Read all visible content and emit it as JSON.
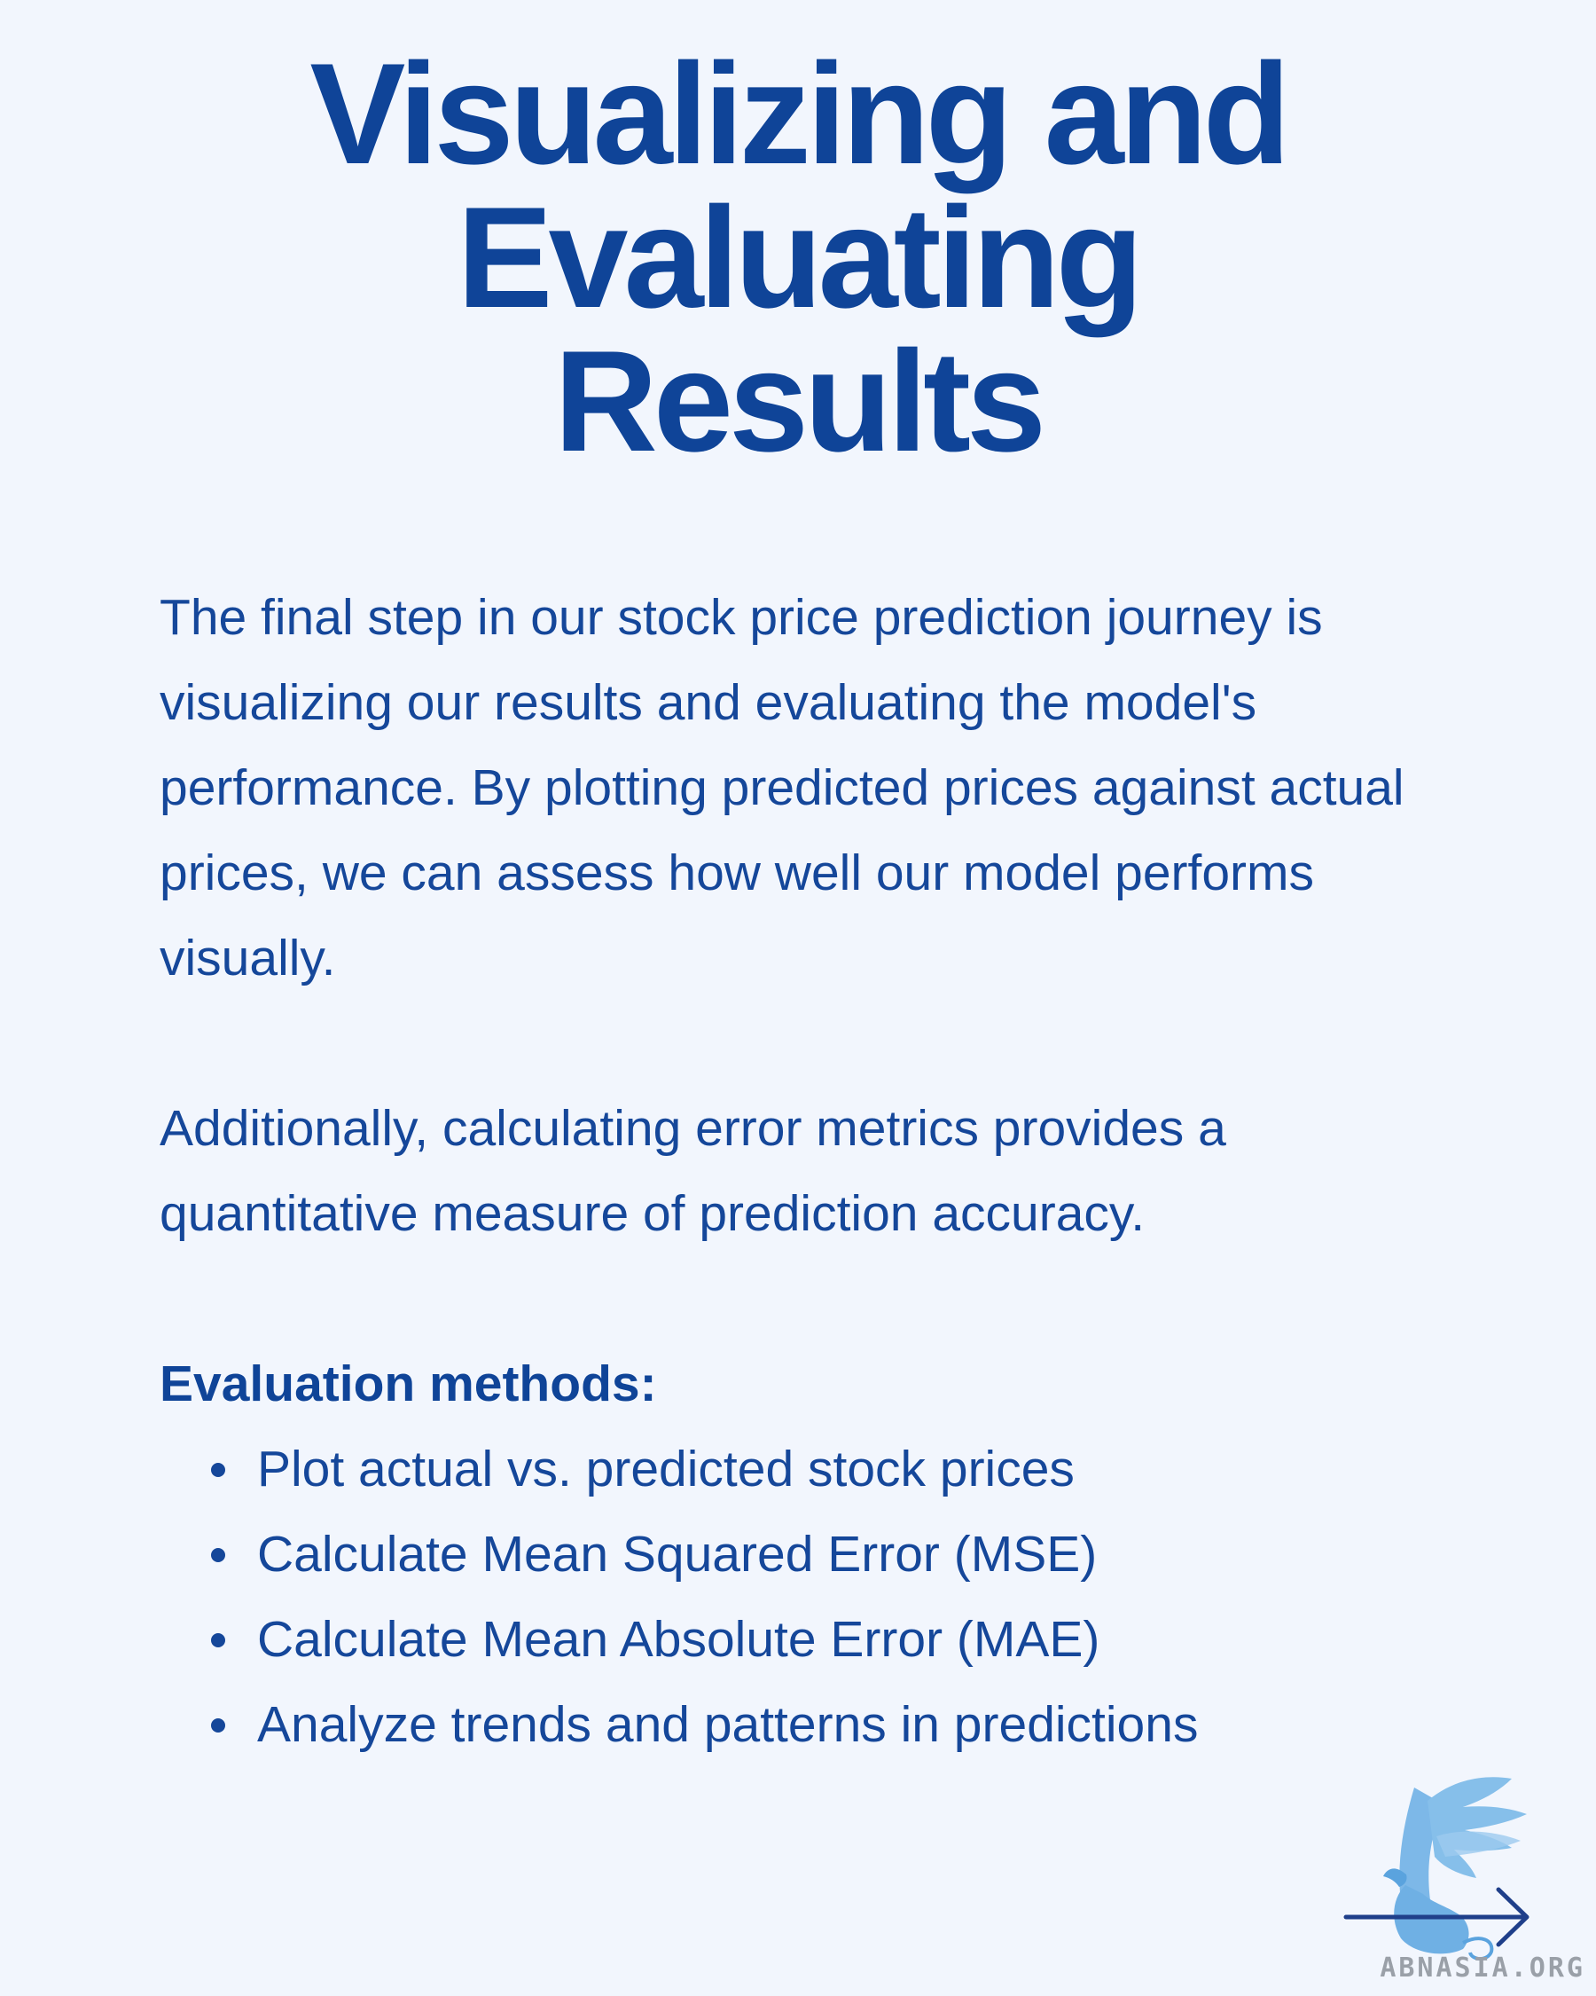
{
  "title": {
    "line1": "Visualizing and",
    "line2": "Evaluating",
    "line3": "Results"
  },
  "paragraphs": [
    "The final step in our stock price prediction journey is visualizing our results and evaluating the model's performance. By plotting predicted prices against actual prices, we can assess how well our model performs visually.",
    "Additionally, calculating error metrics provides a quantitative measure of prediction accuracy."
  ],
  "methods": {
    "heading": "Evaluation methods:",
    "items": [
      "Plot actual vs. predicted stock prices",
      "Calculate Mean Squared Error (MSE)",
      "Calculate Mean Absolute Error (MAE)",
      "Analyze trends and patterns in predictions"
    ]
  },
  "logo": {
    "text": "ABNASIA.ORG",
    "icons": [
      "griffin-logo-icon",
      "arrow-right-icon"
    ]
  },
  "colors": {
    "background": "#f2f6fd",
    "title": "#0f4498",
    "body_text": "#15479a",
    "logo_blue": "#7db8e8",
    "arrow": "#1f3f8a",
    "logo_text": "#9aa0a8"
  }
}
